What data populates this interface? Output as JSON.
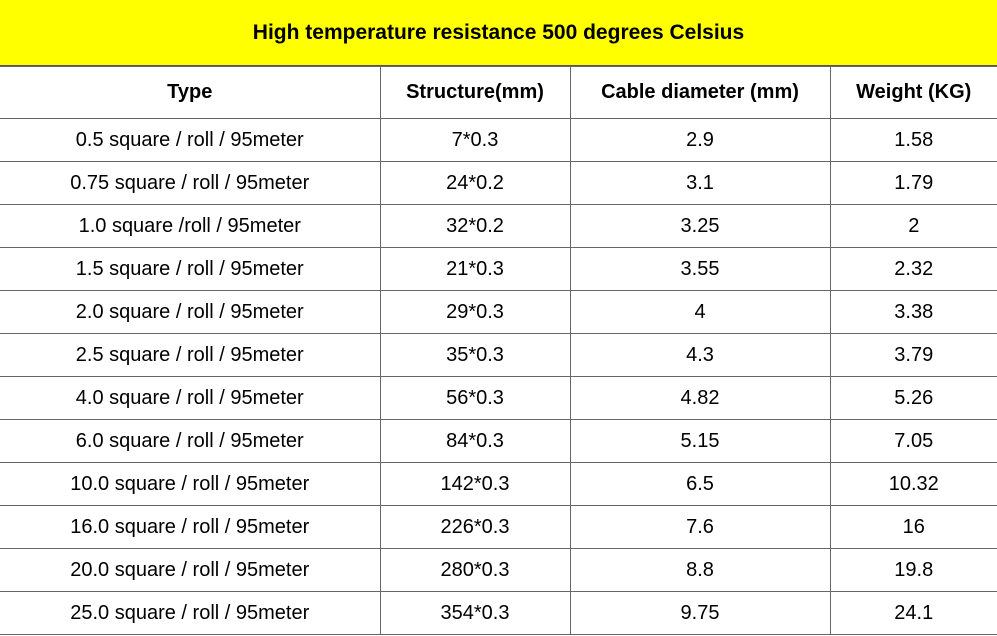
{
  "title": "High temperature resistance 500 degrees Celsius",
  "table": {
    "header": [
      "Type",
      "Structure(mm)",
      "Cable diameter  (mm)",
      "Weight  (KG)"
    ],
    "rows": [
      [
        "0.5 square / roll / 95meter",
        "7*0.3",
        "2.9",
        "1.58"
      ],
      [
        "0.75 square / roll / 95meter",
        "24*0.2",
        "3.1",
        "1.79"
      ],
      [
        "1.0 square /roll / 95meter",
        "32*0.2",
        "3.25",
        "2"
      ],
      [
        "1.5 square / roll / 95meter",
        "21*0.3",
        "3.55",
        "2.32"
      ],
      [
        "2.0 square / roll / 95meter",
        "29*0.3",
        "4",
        "3.38"
      ],
      [
        "2.5 square / roll / 95meter",
        "35*0.3",
        "4.3",
        "3.79"
      ],
      [
        "4.0 square / roll / 95meter",
        "56*0.3",
        "4.82",
        "5.26"
      ],
      [
        "6.0 square / roll / 95meter",
        "84*0.3",
        "5.15",
        "7.05"
      ],
      [
        "10.0 square / roll / 95meter",
        "142*0.3",
        "6.5",
        "10.32"
      ],
      [
        "16.0 square / roll / 95meter",
        "226*0.3",
        "7.6",
        "16"
      ],
      [
        "20.0 square / roll / 95meter",
        "280*0.3",
        "8.8",
        "19.8"
      ],
      [
        "25.0 square / roll / 95meter",
        "354*0.3",
        "9.75",
        "24.1"
      ]
    ]
  }
}
